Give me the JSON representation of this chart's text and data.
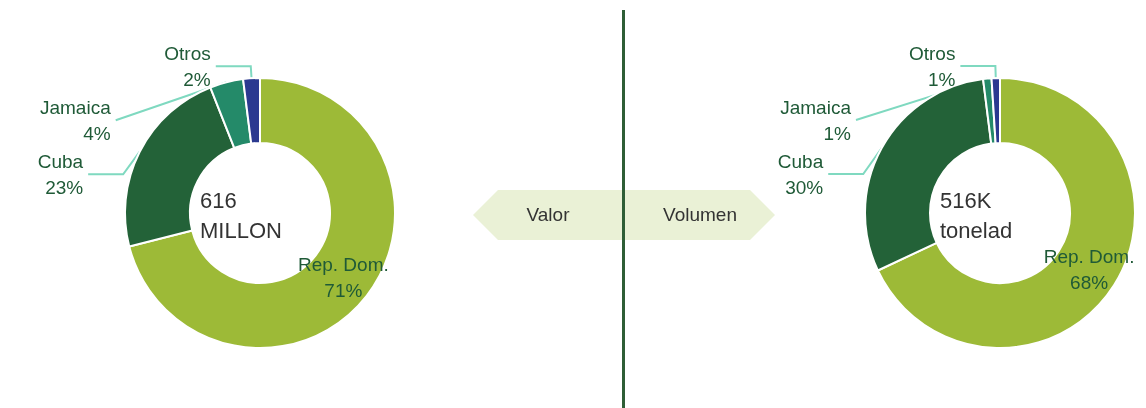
{
  "chart_data": [
    {
      "type": "donut",
      "categories": [
        "Rep. Dom.",
        "Cuba",
        "Jamaica",
        "Otros"
      ],
      "values": [
        71,
        23,
        4,
        2
      ],
      "colors": [
        "#9dba37",
        "#236238",
        "#248a69",
        "#2b3990"
      ],
      "value_labels": [
        "71%",
        "23%",
        "4%",
        "2%"
      ],
      "annotations": [
        "616 MILLON",
        "Valor"
      ]
    },
    {
      "type": "donut",
      "categories": [
        "Rep. Dom.",
        "Cuba",
        "Jamaica",
        "Otros"
      ],
      "values": [
        68,
        30,
        1,
        1
      ],
      "colors": [
        "#9dba37",
        "#236238",
        "#248a69",
        "#2b3990"
      ],
      "value_labels": [
        "68%",
        "30%",
        "1%",
        "1%"
      ],
      "annotations": [
        "516K tonelad",
        "Volumen"
      ]
    }
  ]
}
